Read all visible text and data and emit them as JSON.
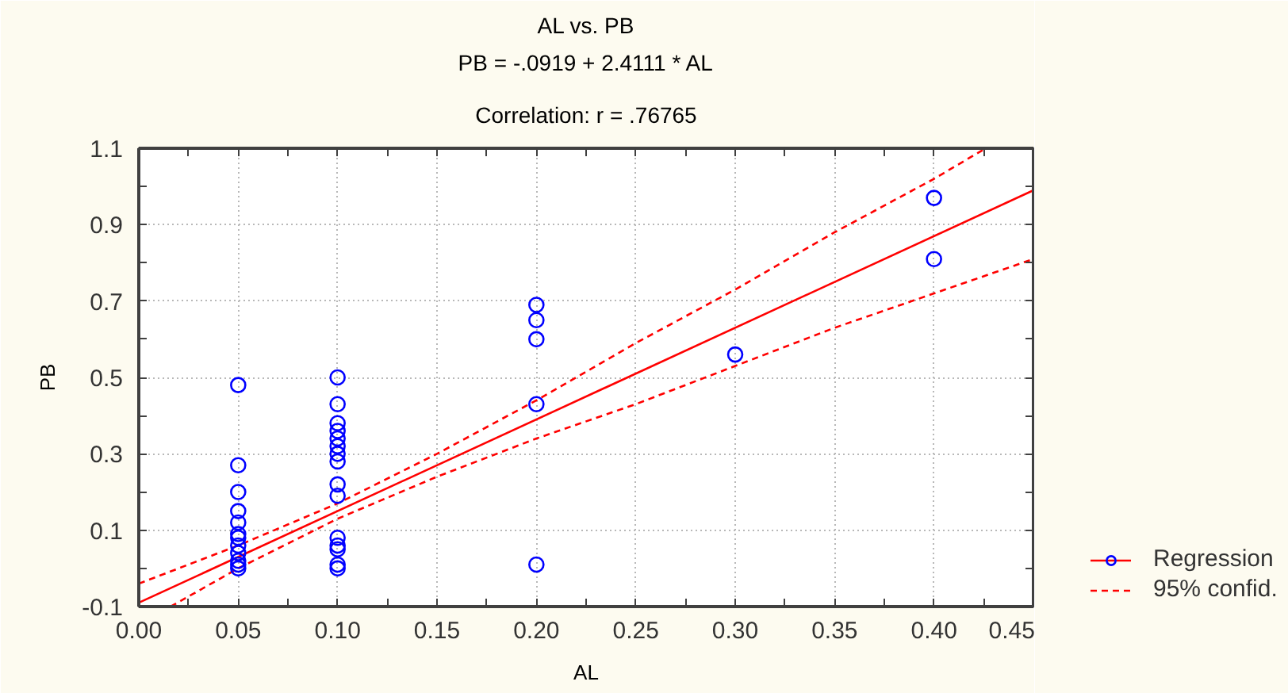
{
  "chart_data": {
    "type": "scatter",
    "title": "AL vs. PB",
    "subtitle": "PB = -.0919 + 2.4111 * AL",
    "annotations": [
      "Correlation: r = .76765"
    ],
    "xlabel": "AL",
    "ylabel": "PB",
    "xlim": [
      0.0,
      0.45
    ],
    "ylim": [
      -0.1,
      1.1
    ],
    "xticks": [
      {
        "value": 0.0,
        "label": "0.00"
      },
      {
        "value": 0.025,
        "label": null
      },
      {
        "value": 0.05,
        "label": "0.05"
      },
      {
        "value": 0.075,
        "label": null
      },
      {
        "value": 0.1,
        "label": "0.10"
      },
      {
        "value": 0.125,
        "label": null
      },
      {
        "value": 0.15,
        "label": "0.15"
      },
      {
        "value": 0.175,
        "label": null
      },
      {
        "value": 0.2,
        "label": "0.20"
      },
      {
        "value": 0.225,
        "label": null
      },
      {
        "value": 0.25,
        "label": "0.25"
      },
      {
        "value": 0.275,
        "label": null
      },
      {
        "value": 0.3,
        "label": "0.30"
      },
      {
        "value": 0.325,
        "label": null
      },
      {
        "value": 0.35,
        "label": "0.35"
      },
      {
        "value": 0.375,
        "label": null
      },
      {
        "value": 0.4,
        "label": "0.40"
      },
      {
        "value": 0.425,
        "label": null
      },
      {
        "value": 0.45,
        "label": "0.45"
      }
    ],
    "yticks": [
      -0.1,
      {
        "value": 0.0,
        "label": null
      },
      0.1,
      {
        "value": 0.2,
        "label": null
      },
      0.3,
      {
        "value": 0.4,
        "label": null
      },
      0.5,
      {
        "value": 0.6,
        "label": null
      },
      0.7,
      {
        "value": 0.8,
        "label": null
      },
      0.9,
      {
        "value": 1.0,
        "label": null
      },
      1.1
    ],
    "grid": true,
    "legend": "bottom right",
    "series": [
      {
        "color": "#0000ff",
        "marker": "circle",
        "x": [
          0.05,
          0.05,
          0.05,
          0.05,
          0.05,
          0.05,
          0.05,
          0.05,
          0.05,
          0.05,
          0.05,
          0.05,
          0.1,
          0.1,
          0.1,
          0.1,
          0.1,
          0.1,
          0.1,
          0.1,
          0.1,
          0.1,
          0.1,
          0.1,
          0.1,
          0.1,
          0.1,
          0.2,
          0.2,
          0.2,
          0.2,
          0.2,
          0.3,
          0.4,
          0.4
        ],
        "values": [
          0.48,
          0.27,
          0.2,
          0.15,
          0.12,
          0.09,
          0.08,
          0.06,
          0.04,
          0.02,
          0.01,
          0.0,
          0.5,
          0.43,
          0.38,
          0.36,
          0.34,
          0.32,
          0.3,
          0.28,
          0.22,
          0.19,
          0.08,
          0.06,
          0.05,
          0.01,
          0.0,
          0.69,
          0.65,
          0.6,
          0.43,
          0.01,
          0.56,
          0.97,
          0.81
        ]
      },
      {
        "type": "line",
        "name": "Regression",
        "color": "#ff0000",
        "marker": "none",
        "line_style": "solid",
        "x": [
          0.0,
          0.45
        ],
        "values": [
          -0.09,
          0.99
        ]
      },
      {
        "type": "line",
        "name": "95% confid.",
        "color": "#ff0000",
        "marker": "none",
        "line_style": "dashed",
        "x": [
          0.0,
          0.05,
          0.1,
          0.15,
          0.2,
          0.25,
          0.3,
          0.35,
          0.4,
          0.426
        ],
        "values": [
          -0.04,
          0.06,
          0.17,
          0.3,
          0.44,
          0.59,
          0.73,
          0.88,
          1.02,
          1.1
        ]
      },
      {
        "type": "line",
        "color": "#ff0000",
        "marker": "none",
        "line_style": "dashed",
        "x": [
          0.016,
          0.05,
          0.1,
          0.15,
          0.2,
          0.25,
          0.3,
          0.35,
          0.4,
          0.45
        ],
        "values": [
          -0.1,
          0.0,
          0.13,
          0.24,
          0.34,
          0.43,
          0.53,
          0.63,
          0.72,
          0.81
        ]
      }
    ]
  }
}
